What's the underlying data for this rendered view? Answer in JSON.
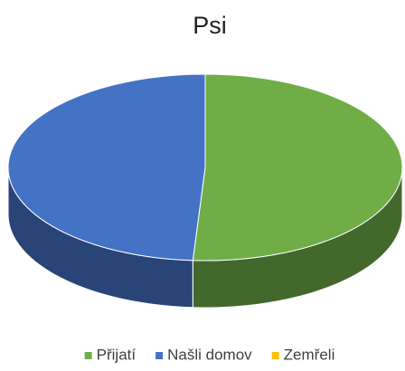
{
  "chart_data": {
    "type": "pie",
    "title": "Psi",
    "categories": [
      "Přijatí",
      "Našli domov",
      "Zemřeli"
    ],
    "values": [
      51,
      49,
      0
    ],
    "colors": [
      "#70ad47",
      "#4472c4",
      "#ffc000"
    ],
    "legend": "bottom"
  }
}
